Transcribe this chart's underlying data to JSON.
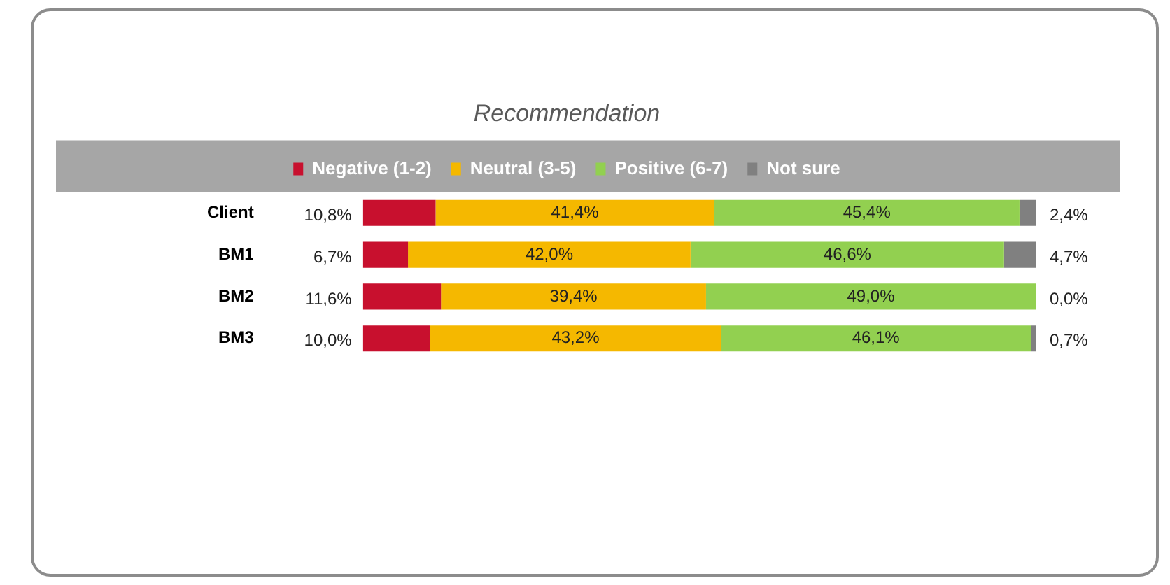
{
  "chart_data": {
    "type": "bar",
    "orientation": "horizontal",
    "stacked": true,
    "title": "Recommendation",
    "categories": [
      "Client",
      "BM1",
      "BM2",
      "BM3"
    ],
    "xlim": [
      0,
      100
    ],
    "tick_labels": "y",
    "grid": false,
    "legend": "top",
    "series": [
      {
        "name": "Negative (1-2)",
        "color": "#c8102e",
        "values": [
          10.8,
          6.7,
          11.6,
          10.0
        ],
        "value_labels": [
          "10,8%",
          "6,7%",
          "11,6%",
          "10,0%"
        ]
      },
      {
        "name": "Neutral (3-5)",
        "color": "#f5b800",
        "values": [
          41.4,
          42.0,
          39.4,
          43.2
        ],
        "value_labels": [
          "41,4%",
          "42,0%",
          "39,4%",
          "43,2%"
        ]
      },
      {
        "name": "Positive (6-7)",
        "color": "#92d050",
        "values": [
          45.4,
          46.6,
          49.0,
          46.1
        ],
        "value_labels": [
          "45,4%",
          "46,6%",
          "49,0%",
          "46,1%"
        ]
      },
      {
        "name": "Not sure",
        "color": "#808080",
        "values": [
          2.4,
          4.7,
          0.0,
          0.7
        ],
        "value_labels": [
          "2,4%",
          "4,7%",
          "0,0%",
          "0,7%"
        ]
      }
    ]
  }
}
